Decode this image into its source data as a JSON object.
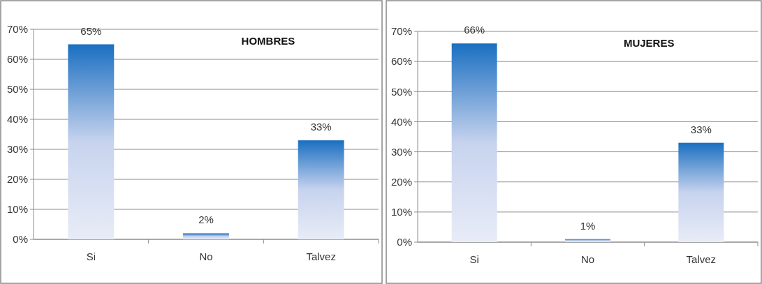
{
  "chart_data": [
    {
      "type": "bar",
      "title": "HOMBRES",
      "categories": [
        "Si",
        "No",
        "Talvez"
      ],
      "values": [
        65,
        2,
        33
      ],
      "value_labels": [
        "65%",
        "2%",
        "33%"
      ],
      "color": "#1a6fc1",
      "ylim": [
        0,
        70
      ],
      "yticks": [
        {
          "value": 0,
          "label": "0%"
        },
        {
          "value": 10,
          "label": "10%"
        },
        {
          "value": 20,
          "label": "20%"
        },
        {
          "value": 30,
          "label": "30%"
        },
        {
          "value": 40,
          "label": "40%"
        },
        {
          "value": 50,
          "label": "50%"
        },
        {
          "value": 60,
          "label": "60%"
        },
        {
          "value": 70,
          "label": "70%"
        }
      ],
      "grid": "y"
    },
    {
      "type": "bar",
      "title": "MUJERES",
      "categories": [
        "Si",
        "No",
        "Talvez"
      ],
      "values": [
        66,
        1,
        33
      ],
      "value_labels": [
        "66%",
        "1%",
        "33%"
      ],
      "color": "#1a6fc1",
      "ylim": [
        0,
        70
      ],
      "yticks": [
        {
          "value": 0,
          "label": "0%"
        },
        {
          "value": 10,
          "label": "10%"
        },
        {
          "value": 20,
          "label": "20%"
        },
        {
          "value": 30,
          "label": "30%"
        },
        {
          "value": 40,
          "label": "40%"
        },
        {
          "value": 50,
          "label": "50%"
        },
        {
          "value": 60,
          "label": "60%"
        },
        {
          "value": 70,
          "label": "70%"
        }
      ],
      "grid": "y"
    }
  ]
}
